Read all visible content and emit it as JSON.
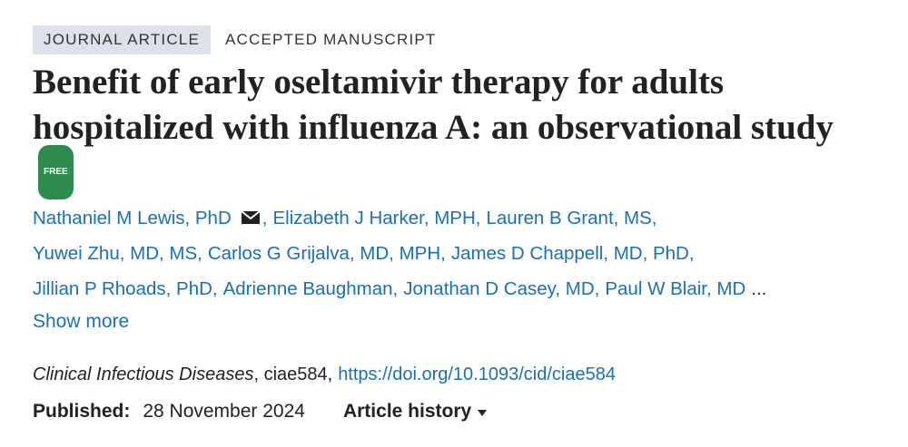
{
  "tags": [
    "JOURNAL ARTICLE",
    "ACCEPTED MANUSCRIPT"
  ],
  "title": "Benefit of early oseltamivir therapy for adults hospitalized with influenza A: an observational study",
  "badge": "FREE",
  "authors": [
    [
      "Nathaniel M Lewis, PhD",
      "Elizabeth J Harker, MPH",
      "Lauren B Grant, MS"
    ],
    [
      "Yuwei Zhu, MD, MS",
      "Carlos G Grijalva, MD, MPH",
      "James D Chappell, MD, PhD"
    ],
    [
      "Jillian P Rhoads, PhD",
      "Adrienne Baughman",
      "Jonathan D Casey, MD",
      "Paul W Blair, MD"
    ]
  ],
  "separator": ",",
  "ellipsis": "...",
  "show_more": "Show more",
  "citation": {
    "journal": "Clinical Infectious Diseases",
    "separator": ",",
    "id": "ciae584",
    "doi": "https://doi.org/10.1093/cid/ciae584"
  },
  "published": {
    "label": "Published:",
    "date": "28 November 2024"
  },
  "history": "Article history"
}
